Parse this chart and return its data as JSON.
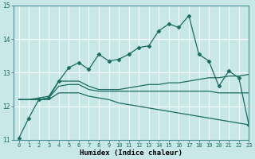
{
  "xlabel": "Humidex (Indice chaleur)",
  "background_color": "#c8e8e8",
  "grid_color": "#ffffff",
  "line_color": "#1a6b60",
  "xlim": [
    -0.5,
    23
  ],
  "ylim": [
    11,
    15
  ],
  "yticks": [
    11,
    12,
    13,
    14,
    15
  ],
  "xtick_labels": [
    "0",
    "1",
    "2",
    "3",
    "4",
    "5",
    "6",
    "7",
    "8",
    "9",
    "10",
    "11",
    "12",
    "13",
    "14",
    "15",
    "16",
    "17",
    "18",
    "19",
    "20",
    "21",
    "22",
    "23"
  ],
  "series_with_markers": [
    [
      11.05,
      11.65,
      12.2,
      12.25,
      12.75,
      13.15,
      13.3,
      13.1,
      13.55,
      13.35,
      13.4,
      13.55,
      13.75,
      13.8,
      14.25,
      14.45,
      14.35,
      14.7,
      13.55,
      13.35,
      12.6,
      13.05,
      12.85,
      11.45
    ]
  ],
  "series_no_markers": [
    [
      12.2,
      12.2,
      12.25,
      12.3,
      12.75,
      12.75,
      12.75,
      12.6,
      12.5,
      12.5,
      12.5,
      12.55,
      12.6,
      12.65,
      12.65,
      12.7,
      12.7,
      12.75,
      12.8,
      12.85,
      12.85,
      12.9,
      12.9,
      12.95
    ],
    [
      12.2,
      12.2,
      12.2,
      12.25,
      12.6,
      12.65,
      12.65,
      12.5,
      12.45,
      12.45,
      12.45,
      12.45,
      12.45,
      12.45,
      12.45,
      12.45,
      12.45,
      12.45,
      12.45,
      12.45,
      12.4,
      12.4,
      12.4,
      12.4
    ],
    [
      12.2,
      12.2,
      12.2,
      12.2,
      12.4,
      12.4,
      12.4,
      12.3,
      12.25,
      12.2,
      12.1,
      12.05,
      12.0,
      11.95,
      11.9,
      11.85,
      11.8,
      11.75,
      11.7,
      11.65,
      11.6,
      11.55,
      11.5,
      11.45
    ]
  ],
  "marker": "D",
  "markersize": 2.5,
  "linewidth": 0.9,
  "tick_fontsize": 5.0,
  "xlabel_fontsize": 6.5
}
